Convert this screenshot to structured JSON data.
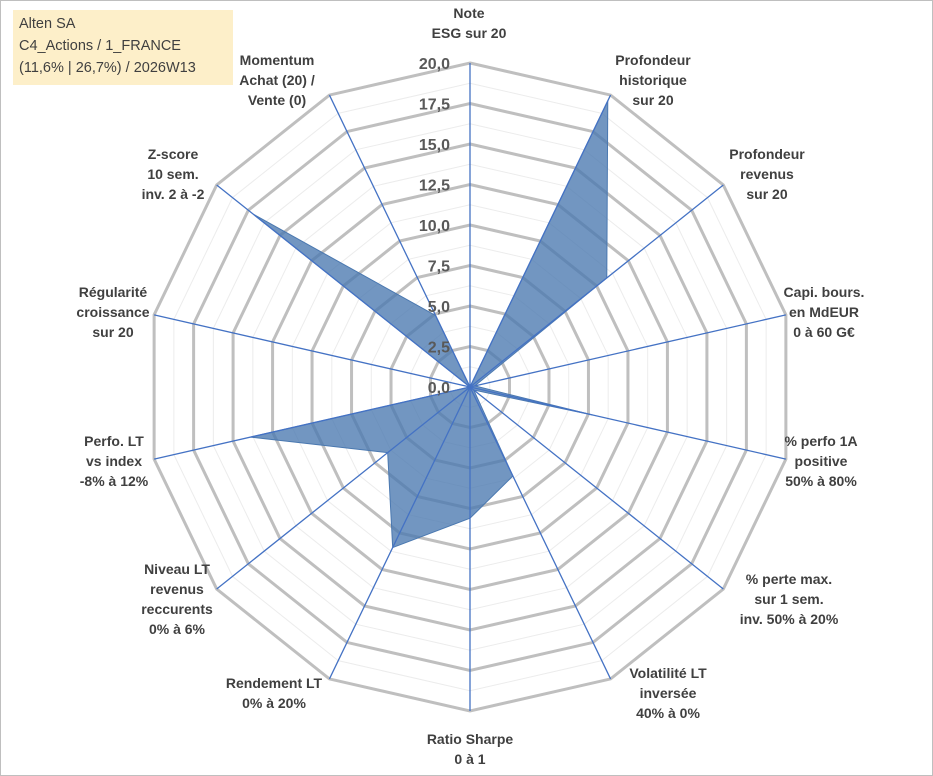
{
  "info_box": {
    "line1": "Alten SA",
    "line2": "C4_Actions / 1_FRANCE",
    "line3": "(11,6% | 26,7%) / 2026W13"
  },
  "chart_data": {
    "type": "radar",
    "title": "",
    "rmin": 0,
    "rmax": 20,
    "tick_step": 2.5,
    "ticks": [
      "0,0",
      "2,5",
      "5,0",
      "7,5",
      "10,0",
      "12,5",
      "15,0",
      "17,5",
      "20,0"
    ],
    "axes": [
      "Note\nESG sur 20",
      "Profondeur\nhistorique\nsur 20",
      "Profondeur\nrevenus\nsur 20",
      "Capi. bours.\nen MdEUR\n0 à 60 G€",
      "% perfo 1A\npositive\n50% à 80%",
      "% perte max.\nsur 1 sem.\ninv. 50% à 20%",
      "Volatilité LT\ninversée\n40% à 0%",
      "Ratio Sharpe\n0 à 1",
      "Rendement LT\n0% à 20%",
      "Niveau LT\nrevenus\nreccurents\n0% à 6%",
      "Perfo. LT\nvs index\n-8% à 12%",
      "Régularité\ncroissance\nsur 20",
      "Z-score\n10 sem.\ninv. 2 à -2",
      "Momentum\nAchat (20) /\nVente (0)"
    ],
    "series": [
      {
        "name": "Alten SA",
        "values": [
          0,
          19.6,
          10.8,
          0.3,
          7.8,
          0.3,
          6.1,
          8.1,
          11.0,
          6.5,
          13.9,
          0,
          17.1,
          4.9
        ],
        "color": "#4a78b0"
      }
    ],
    "grid_color": "#bfbfbf",
    "axis_color": "#4472c4"
  }
}
